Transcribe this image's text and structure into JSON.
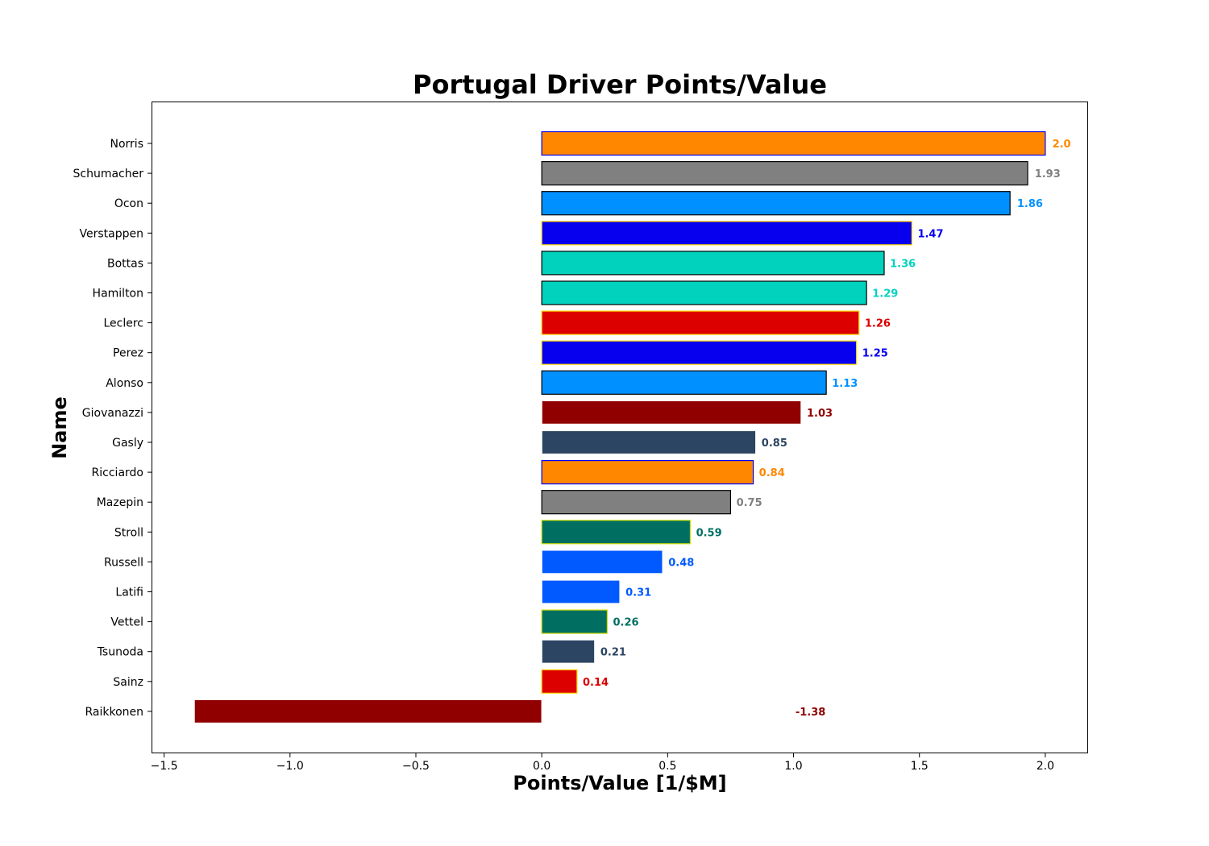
{
  "chart_data": {
    "type": "bar",
    "orientation": "horizontal",
    "title": "Portugal Driver Points/Value",
    "xlabel": "Points/Value [1/$M]",
    "ylabel": "Name",
    "xlim": [
      -1.55,
      2.17
    ],
    "xticks": [
      -1.5,
      -1.0,
      -0.5,
      0.0,
      0.5,
      1.0,
      1.5,
      2.0
    ],
    "xtick_labels": [
      "−1.5",
      "−1.0",
      "−0.5",
      "0.0",
      "0.5",
      "1.0",
      "1.5",
      "2.0"
    ],
    "grid": false,
    "bars": [
      {
        "name": "Norris",
        "value": 2.0,
        "label": "2.0",
        "fill": "#FF8700",
        "edge": "#0000FF"
      },
      {
        "name": "Schumacher",
        "value": 1.93,
        "label": "1.93",
        "fill": "#808080",
        "edge": "#000000"
      },
      {
        "name": "Ocon",
        "value": 1.86,
        "label": "1.86",
        "fill": "#0090FF",
        "edge": "#000000"
      },
      {
        "name": "Verstappen",
        "value": 1.47,
        "label": "1.47",
        "fill": "#0600EF",
        "edge": "#FFD700"
      },
      {
        "name": "Bottas",
        "value": 1.36,
        "label": "1.36",
        "fill": "#00D2BE",
        "edge": "#000000"
      },
      {
        "name": "Hamilton",
        "value": 1.29,
        "label": "1.29",
        "fill": "#00D2BE",
        "edge": "#000000"
      },
      {
        "name": "Leclerc",
        "value": 1.26,
        "label": "1.26",
        "fill": "#DC0000",
        "edge": "#FFD700"
      },
      {
        "name": "Perez",
        "value": 1.25,
        "label": "1.25",
        "fill": "#0600EF",
        "edge": "#FFD700"
      },
      {
        "name": "Alonso",
        "value": 1.13,
        "label": "1.13",
        "fill": "#0090FF",
        "edge": "#000000"
      },
      {
        "name": "Giovanazzi",
        "value": 1.03,
        "label": "1.03",
        "fill": "#900000",
        "edge": "#FFFFFF"
      },
      {
        "name": "Gasly",
        "value": 0.85,
        "label": "0.85",
        "fill": "#2B4562",
        "edge": "#FFFFFF"
      },
      {
        "name": "Ricciardo",
        "value": 0.84,
        "label": "0.84",
        "fill": "#FF8700",
        "edge": "#0000FF"
      },
      {
        "name": "Mazepin",
        "value": 0.75,
        "label": "0.75",
        "fill": "#808080",
        "edge": "#000000"
      },
      {
        "name": "Stroll",
        "value": 0.59,
        "label": "0.59",
        "fill": "#006F62",
        "edge": "#CEDC00"
      },
      {
        "name": "Russell",
        "value": 0.48,
        "label": "0.48",
        "fill": "#005AFF",
        "edge": "#FFFFFF"
      },
      {
        "name": "Latifi",
        "value": 0.31,
        "label": "0.31",
        "fill": "#005AFF",
        "edge": "#FFFFFF"
      },
      {
        "name": "Vettel",
        "value": 0.26,
        "label": "0.26",
        "fill": "#006F62",
        "edge": "#CEDC00"
      },
      {
        "name": "Tsunoda",
        "value": 0.21,
        "label": "0.21",
        "fill": "#2B4562",
        "edge": "#FFFFFF"
      },
      {
        "name": "Sainz",
        "value": 0.14,
        "label": "0.14",
        "fill": "#DC0000",
        "edge": "#FFD700"
      },
      {
        "name": "Raikkonen",
        "value": -1.38,
        "label": "-1.38",
        "fill": "#900000",
        "edge": "#FFFFFF"
      }
    ]
  }
}
